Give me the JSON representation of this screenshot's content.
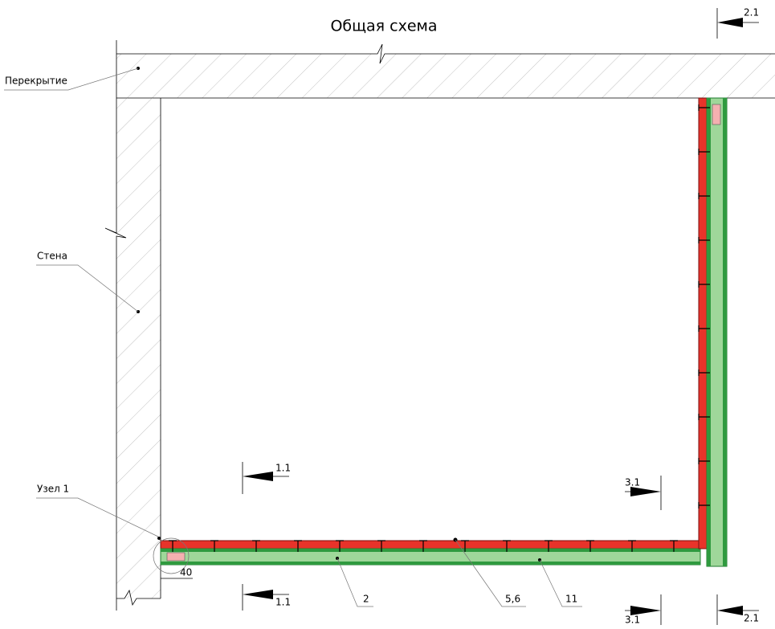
{
  "title": "Общая схема",
  "callouts": [
    {
      "label": "Перекрытие"
    },
    {
      "label": "Стена"
    },
    {
      "label": "Узел 1"
    },
    {
      "label": "2"
    },
    {
      "label": "5,6"
    },
    {
      "label": "11"
    }
  ],
  "dimension": "40",
  "sections": [
    {
      "label": "1.1"
    },
    {
      "label": "1.1"
    },
    {
      "label": "2.1"
    },
    {
      "label": "2.1"
    },
    {
      "label": "3.1"
    },
    {
      "label": "3.1"
    }
  ]
}
